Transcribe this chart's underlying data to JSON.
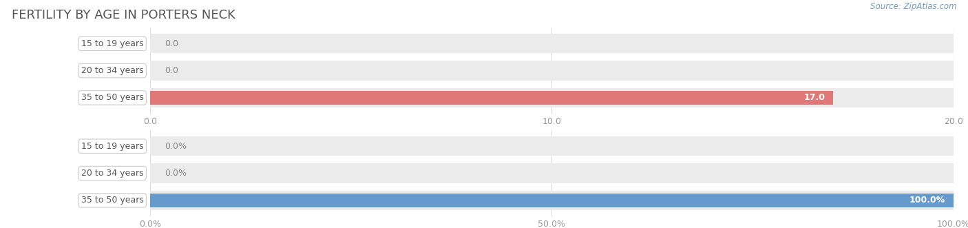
{
  "title": "FERTILITY BY AGE IN PORTERS NECK",
  "source": "Source: ZipAtlas.com",
  "title_color": "#555555",
  "title_fontsize": 13,
  "background_color": "#ffffff",
  "chart_bg_color": "#ebebeb",
  "label_box_color": "#ffffff",
  "label_box_edge_color": "#cccccc",
  "label_font_color": "#555555",
  "label_fontsize": 9,
  "tick_fontsize": 9,
  "tick_color": "#999999",
  "grid_color": "#dddddd",
  "value_label_inside_color": "#ffffff",
  "value_label_outside_color": "#888888",
  "top_chart": {
    "categories": [
      "15 to 19 years",
      "20 to 34 years",
      "35 to 50 years"
    ],
    "values": [
      0.0,
      0.0,
      17.0
    ],
    "max_value": 20.0,
    "xticks": [
      0.0,
      10.0,
      20.0
    ],
    "xtick_labels": [
      "0.0",
      "10.0",
      "20.0"
    ],
    "bar_color": "#e07878",
    "value_labels": [
      "0.0",
      "0.0",
      "17.0"
    ]
  },
  "bottom_chart": {
    "categories": [
      "15 to 19 years",
      "20 to 34 years",
      "35 to 50 years"
    ],
    "values": [
      0.0,
      0.0,
      100.0
    ],
    "max_value": 100.0,
    "xticks": [
      0.0,
      50.0,
      100.0
    ],
    "xtick_labels": [
      "0.0%",
      "50.0%",
      "100.0%"
    ],
    "bar_color": "#6699cc",
    "value_labels": [
      "0.0%",
      "0.0%",
      "100.0%"
    ]
  }
}
